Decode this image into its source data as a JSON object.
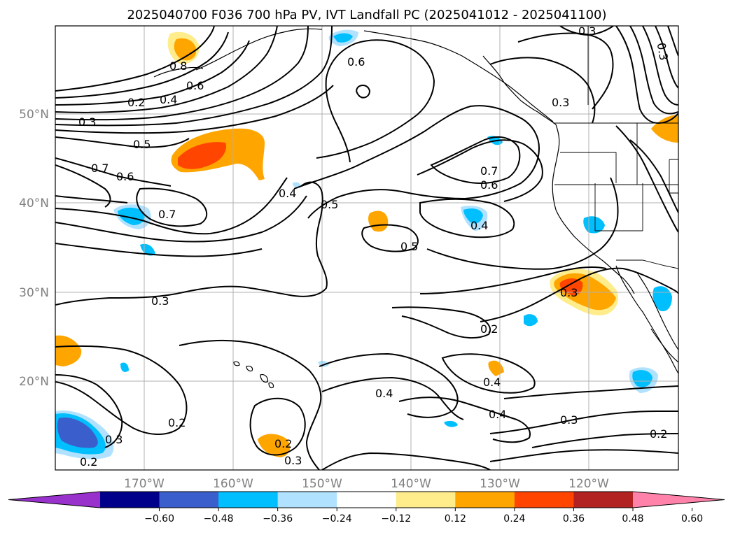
{
  "title": "2025040700 F036 700 hPa PV, IVT Landfall PC (2025041012 - 2025041100)",
  "latitude_ticks": [
    "50°N",
    "40°N",
    "30°N",
    "20°N"
  ],
  "longitude_ticks": [
    "170°W",
    "160°W",
    "150°W",
    "140°W",
    "130°W",
    "120°W"
  ],
  "contour_labels": [
    {
      "text": "0.8"
    },
    {
      "text": "0.6"
    },
    {
      "text": "0.4"
    },
    {
      "text": "0.2"
    },
    {
      "text": "0.3"
    },
    {
      "text": "0.5"
    },
    {
      "text": "0.7"
    },
    {
      "text": "0.6"
    },
    {
      "text": "0.7"
    },
    {
      "text": "0.4"
    },
    {
      "text": "0.5"
    },
    {
      "text": "0.6"
    },
    {
      "text": "0.5"
    },
    {
      "text": "0.7"
    },
    {
      "text": "0.6"
    },
    {
      "text": "0.4"
    },
    {
      "text": "0.3"
    },
    {
      "text": "0.3"
    },
    {
      "text": "0.3"
    },
    {
      "text": "0.2"
    },
    {
      "text": "0.4"
    },
    {
      "text": "0.4"
    },
    {
      "text": "0.4"
    },
    {
      "text": "0.3"
    },
    {
      "text": "0.2"
    },
    {
      "text": "0.2"
    },
    {
      "text": "0.3"
    },
    {
      "text": "0.2"
    },
    {
      "text": "0.3"
    },
    {
      "text": "0.2"
    },
    {
      "text": "0.3"
    },
    {
      "text": "0.3"
    }
  ],
  "colorbar": {
    "ticks": [
      "−0.60",
      "−0.48",
      "−0.36",
      "−0.24",
      "−0.12",
      "0.12",
      "0.24",
      "0.36",
      "0.48",
      "0.60"
    ],
    "colors": [
      "#9932cc",
      "#00008b",
      "#3a5fcd",
      "#00bfff",
      "#b0e2ff",
      "#ffffff",
      "#ffec8b",
      "#ffa500",
      "#ff4500",
      "#b22222",
      "#ff82ab"
    ]
  },
  "palette": {
    "lightblue": "#b0e2ff",
    "cyan": "#00bfff",
    "royal": "#3a5fcd",
    "yellow": "#ffec8b",
    "orange": "#ffa500",
    "redorange": "#ff4500"
  }
}
